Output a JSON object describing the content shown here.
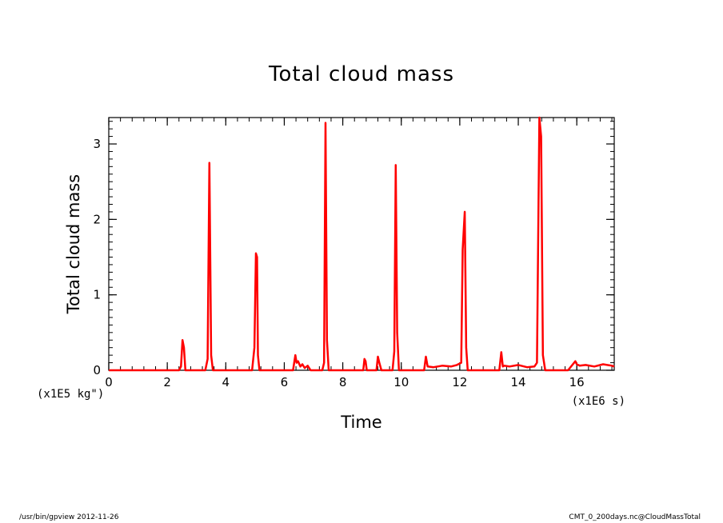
{
  "chart_data": {
    "type": "line",
    "title": "Total cloud mass",
    "xlabel": "Time",
    "ylabel": "Total cloud mass",
    "x_unit": "(x1E6 s)",
    "y_unit": "(x1E5 kg\")",
    "xlim": [
      0,
      17.28
    ],
    "ylim": [
      0,
      3.35
    ],
    "x_ticks": [
      0,
      2,
      4,
      6,
      8,
      10,
      12,
      14,
      16
    ],
    "x_tick_labels": [
      "0",
      "2",
      "4",
      "6",
      "8",
      "10",
      "12",
      "14",
      "16"
    ],
    "y_ticks": [
      0,
      1,
      2,
      3
    ],
    "y_tick_labels": [
      "0",
      "1",
      "2",
      "3"
    ],
    "grid": false,
    "series": [
      {
        "color": "#ff0000",
        "x": [
          0,
          2.4,
          2.47,
          2.52,
          2.57,
          2.62,
          3.3,
          3.38,
          3.44,
          3.5,
          3.56,
          4.9,
          4.98,
          5.03,
          5.07,
          5.1,
          5.15,
          6.3,
          6.38,
          6.42,
          6.47,
          6.55,
          6.62,
          6.7,
          6.8,
          6.9,
          7.3,
          7.36,
          7.41,
          7.46,
          7.52,
          8.7,
          8.74,
          8.78,
          8.82,
          9.15,
          9.2,
          9.25,
          9.32,
          9.7,
          9.76,
          9.81,
          9.86,
          9.92,
          10.78,
          10.84,
          10.9,
          11.1,
          11.4,
          11.7,
          11.9,
          12.05,
          12.1,
          12.17,
          12.22,
          12.27,
          13.35,
          13.42,
          13.47,
          13.53,
          13.7,
          14.0,
          14.3,
          14.55,
          14.64,
          14.72,
          14.78,
          14.84,
          14.92,
          15.7,
          15.95,
          16.0,
          16.1,
          16.3,
          16.6,
          16.9,
          17.2,
          17.28
        ],
        "y": [
          0,
          0,
          0.05,
          0.4,
          0.3,
          0,
          0,
          0.15,
          2.75,
          0.2,
          0,
          0,
          0.3,
          1.55,
          1.5,
          0.2,
          0,
          0,
          0.2,
          0.1,
          0.12,
          0.05,
          0.08,
          0.03,
          0.06,
          0,
          0,
          0.1,
          3.28,
          0.4,
          0,
          0,
          0.15,
          0.12,
          0,
          0,
          0.18,
          0.1,
          0,
          0,
          0.25,
          2.72,
          0.5,
          0,
          0,
          0.18,
          0.05,
          0.04,
          0.06,
          0.05,
          0.07,
          0.1,
          1.6,
          2.1,
          0.3,
          0,
          0,
          0.24,
          0.05,
          0.06,
          0.05,
          0.07,
          0.04,
          0.05,
          0.1,
          3.35,
          3.1,
          0.2,
          0,
          0,
          0.12,
          0.08,
          0.06,
          0.07,
          0.05,
          0.08,
          0.06,
          0.05
        ]
      }
    ]
  },
  "footer": {
    "left": "/usr/bin/gpview   2012-11-26",
    "right": "CMT_0_200days.nc@CloudMassTotal"
  }
}
